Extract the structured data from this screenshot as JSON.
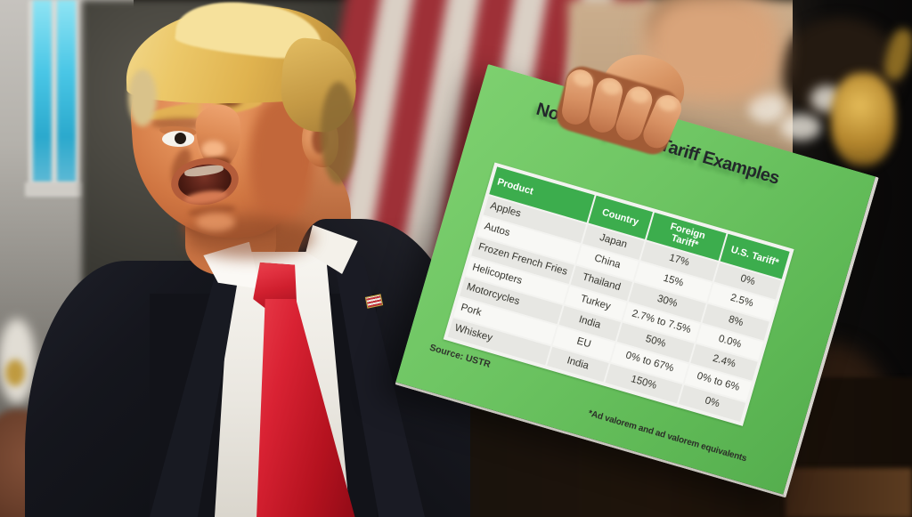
{
  "board": {
    "title": "Non-Reciprocal Tariff Examples",
    "source_label": "Source: USTR",
    "footnote": "*Ad valorem and ad valorem equivalents",
    "colors": {
      "board_green": "#6ec563",
      "header_green": "#3cad4d",
      "row_shaded": "#e7e7e3",
      "row_light": "#f8f8f5"
    },
    "table": {
      "columns": [
        "Product",
        "Country",
        "Foreign Tariff*",
        "U.S. Tariff*"
      ],
      "rows": [
        {
          "product": "Apples",
          "country": "Japan",
          "foreign_tariff": "17%",
          "us_tariff": "0%"
        },
        {
          "product": "Autos",
          "country": "China",
          "foreign_tariff": "15%",
          "us_tariff": "2.5%"
        },
        {
          "product": "Frozen French Fries",
          "country": "Thailand",
          "foreign_tariff": "30%",
          "us_tariff": "8%"
        },
        {
          "product": "Helicopters",
          "country": "Turkey",
          "foreign_tariff": "2.7% to 7.5%",
          "us_tariff": "0.0%"
        },
        {
          "product": "Motorcycles",
          "country": "India",
          "foreign_tariff": "50%",
          "us_tariff": "2.4%"
        },
        {
          "product": "Pork",
          "country": "EU",
          "foreign_tariff": "0% to 67%",
          "us_tariff": "0% to 6%"
        },
        {
          "product": "Whiskey",
          "country": "India",
          "foreign_tariff": "150%",
          "us_tariff": "0%"
        }
      ]
    }
  },
  "chart_data": {
    "type": "table",
    "title": "Non-Reciprocal Tariff Examples",
    "columns": [
      "Product",
      "Country",
      "Foreign Tariff*",
      "U.S. Tariff*"
    ],
    "rows": [
      [
        "Apples",
        "Japan",
        "17%",
        "0%"
      ],
      [
        "Autos",
        "China",
        "15%",
        "2.5%"
      ],
      [
        "Frozen French Fries",
        "Thailand",
        "30%",
        "8%"
      ],
      [
        "Helicopters",
        "Turkey",
        "2.7% to 7.5%",
        "0.0%"
      ],
      [
        "Motorcycles",
        "India",
        "50%",
        "2.4%"
      ],
      [
        "Pork",
        "EU",
        "0% to 67%",
        "0% to 6%"
      ],
      [
        "Whiskey",
        "India",
        "150%",
        "0%"
      ]
    ],
    "source": "Source: USTR",
    "footnote": "*Ad valorem and ad valorem equivalents"
  }
}
